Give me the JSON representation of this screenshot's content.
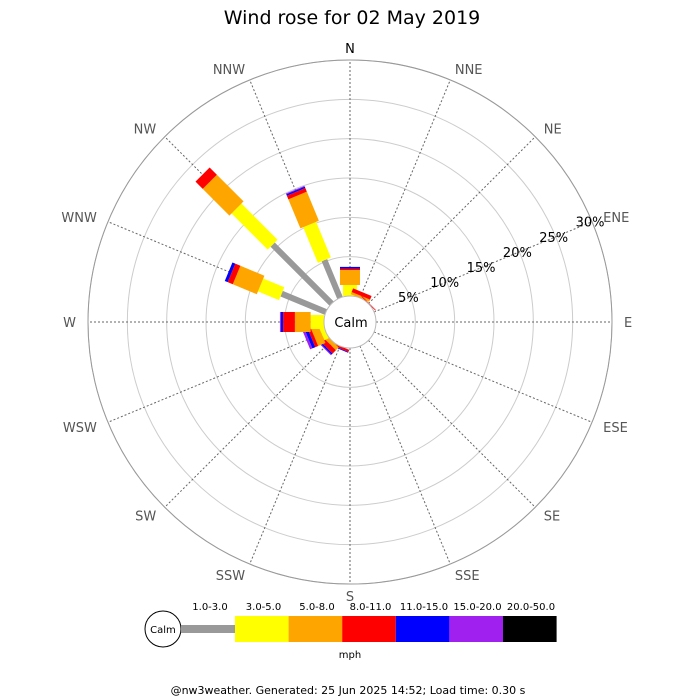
{
  "chart_data": {
    "type": "wind-rose",
    "title": "Wind rose for 02 May 2019",
    "calm_label": "Calm",
    "directions": [
      "N",
      "NNE",
      "NE",
      "ENE",
      "E",
      "ESE",
      "SE",
      "SSE",
      "S",
      "SSW",
      "SW",
      "WSW",
      "W",
      "WNW",
      "NW",
      "NNW"
    ],
    "rings": [
      5,
      10,
      15,
      20,
      25,
      30
    ],
    "ring_labels": [
      "5%",
      "10%",
      "15%",
      "20%",
      "25%",
      "30%"
    ],
    "rmax": 30,
    "unit": "mph",
    "bins": [
      {
        "label": "1.0-3.0",
        "color": "#999999"
      },
      {
        "label": "3.0-5.0",
        "color": "#ffff00"
      },
      {
        "label": "5.0-8.0",
        "color": "#ffa500"
      },
      {
        "label": "8.0-11.0",
        "color": "#ff0000"
      },
      {
        "label": "11.0-15.0",
        "color": "#0000ff"
      },
      {
        "label": "15.0-20.0",
        "color": "#a020f0"
      },
      {
        "label": "20.0-50.0",
        "color": "#000000"
      }
    ],
    "series": [
      {
        "direction": "N",
        "values": [
          0.0,
          1.4,
          3.3,
          3.5,
          3.7,
          3.7,
          3.7
        ]
      },
      {
        "direction": "NNE",
        "values": [
          0.0,
          0.0,
          0.3,
          0.8,
          0.8,
          0.8,
          0.8
        ]
      },
      {
        "direction": "NE",
        "values": [
          0.0,
          0.0,
          0.0,
          0.1,
          0.1,
          0.1,
          0.1
        ]
      },
      {
        "direction": "ENE",
        "values": [
          0,
          0,
          0,
          0,
          0,
          0,
          0
        ]
      },
      {
        "direction": "E",
        "values": [
          0,
          0,
          0,
          0,
          0,
          0,
          0
        ]
      },
      {
        "direction": "ESE",
        "values": [
          0,
          0,
          0,
          0,
          0,
          0,
          0
        ]
      },
      {
        "direction": "SE",
        "values": [
          0,
          0,
          0,
          0,
          0,
          0,
          0
        ]
      },
      {
        "direction": "SSE",
        "values": [
          0,
          0,
          0,
          0,
          0,
          0,
          0
        ]
      },
      {
        "direction": "S",
        "values": [
          0,
          0,
          0,
          0,
          0,
          0,
          0
        ]
      },
      {
        "direction": "SSW",
        "values": [
          0.0,
          0.0,
          0.0,
          0.3,
          0.4,
          0.4,
          0.4
        ]
      },
      {
        "direction": "SW",
        "values": [
          0.0,
          0.0,
          0.5,
          1.1,
          1.3,
          1.4,
          1.4
        ]
      },
      {
        "direction": "WSW",
        "values": [
          0.0,
          0.6,
          1.6,
          2.0,
          2.4,
          2.7,
          2.7
        ]
      },
      {
        "direction": "W",
        "values": [
          0.0,
          1.7,
          3.7,
          5.2,
          5.5,
          5.6,
          5.6
        ]
      },
      {
        "direction": "WNW",
        "values": [
          6.1,
          9.0,
          12.3,
          13.0,
          13.4,
          13.4,
          13.4
        ]
      },
      {
        "direction": "NW",
        "values": [
          10.6,
          17.1,
          21.9,
          23.2,
          23.2,
          23.2,
          23.2
        ]
      },
      {
        "direction": "NNW",
        "values": [
          5.2,
          10.1,
          14.1,
          14.6,
          14.8,
          14.9,
          14.9
        ]
      }
    ]
  },
  "footer": "@nw3weather. Generated: 25 Jun 2025 14:52; Load time: 0.30 s"
}
